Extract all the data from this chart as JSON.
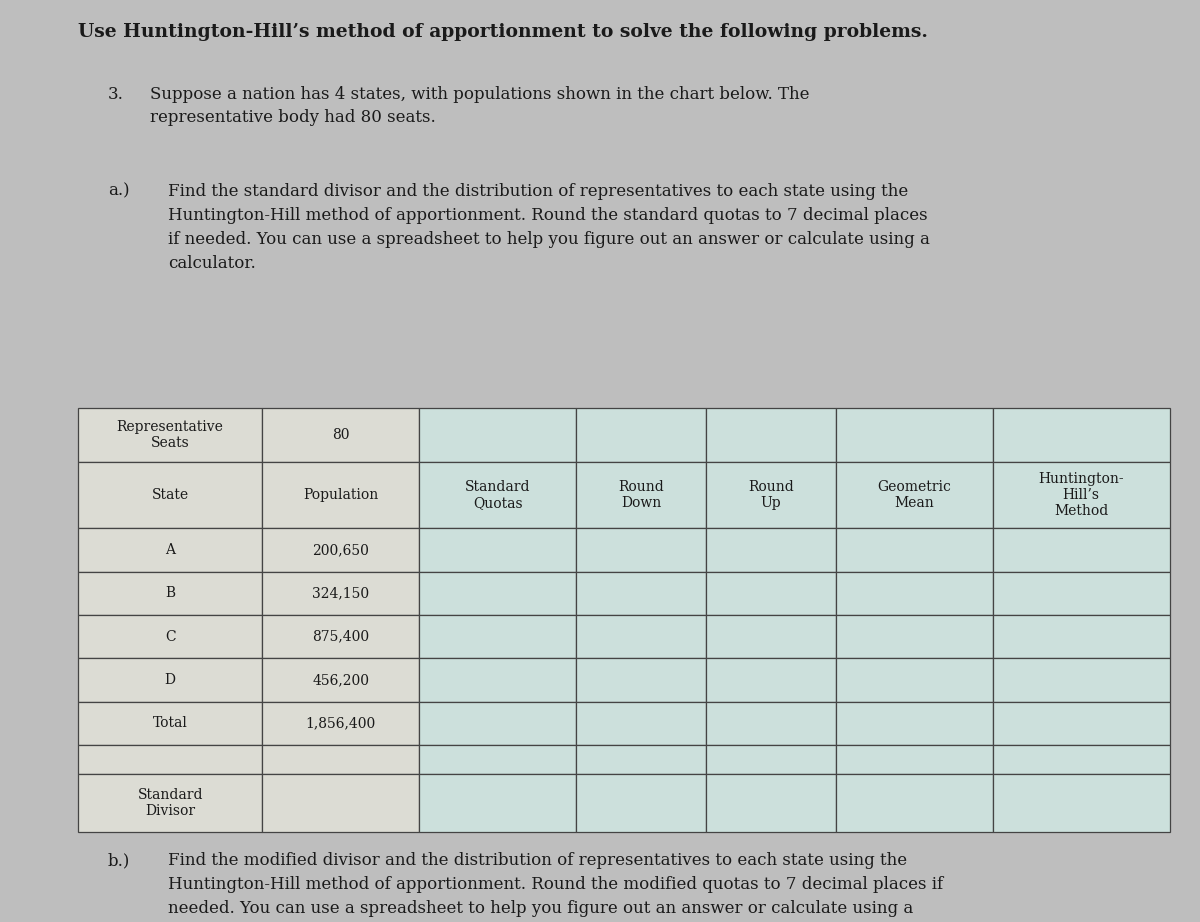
{
  "title": "Use Huntington-Hill’s method of apportionment to solve the following problems.",
  "problem_number": "3.",
  "problem_text": "Suppose a nation has 4 states, with populations shown in the chart below. The\nrepresentative body had 80 seats.",
  "part_a_label": "a.)",
  "part_a_text": "Find the standard divisor and the distribution of representatives to each state using the\nHuntington-Hill method of apportionment. Round the standard quotas to 7 decimal places\nif needed. You can use a spreadsheet to help you figure out an answer or calculate using a\ncalculator.",
  "part_b_label": "b.)",
  "part_b_text": "Find the modified divisor and the distribution of representatives to each state using the\nHuntington-Hill method of apportionment. Round the modified quotas to 7 decimal places if\nneeded. You can use a spreadsheet to help you figure out an answer or calculate using a\ncalculator.",
  "table_header_row1_col0": "Representative\nSeats",
  "table_header_row1_col1": "80",
  "table_header_row2": [
    "State",
    "Population",
    "Standard\nQuotas",
    "Round\nDown",
    "Round\nUp",
    "Geometric\nMean",
    "Huntington-\nHill’s\nMethod"
  ],
  "table_data_rows": [
    [
      "A",
      "200,650"
    ],
    [
      "B",
      "324,150"
    ],
    [
      "C",
      "875,400"
    ],
    [
      "D",
      "456,200"
    ],
    [
      "Total",
      "1,856,400"
    ]
  ],
  "table_footer_col0": "Standard\nDivisor",
  "bg_color": "#bebebe",
  "cell_color_left": "#dcdcd4",
  "cell_color_right": "#cce0dc",
  "border_color": "#444444",
  "text_color": "#1a1a1a",
  "col_widths_ratio": [
    1.35,
    1.15,
    1.15,
    0.95,
    0.95,
    1.15,
    1.3
  ]
}
